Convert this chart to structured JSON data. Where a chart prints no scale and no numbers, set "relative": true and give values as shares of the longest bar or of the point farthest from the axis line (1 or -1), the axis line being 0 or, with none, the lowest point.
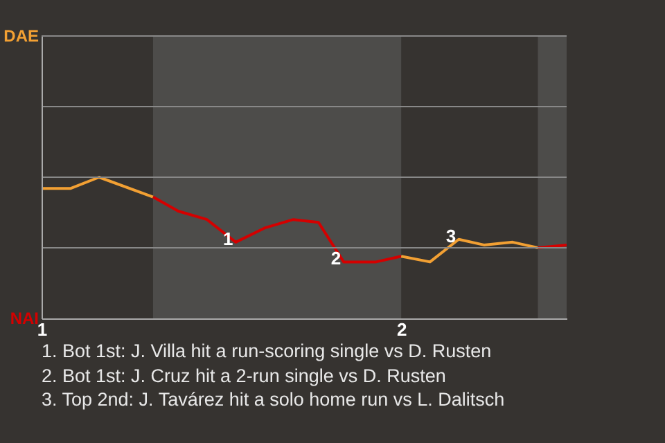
{
  "chart_data": {
    "type": "line",
    "series": [
      {
        "color": "#f2a033",
        "x": [
          1.0,
          1.08,
          1.16,
          1.31
        ],
        "values": [
          0.92,
          0.92,
          1,
          0.86
        ]
      },
      {
        "color": "#d40000",
        "x": [
          1.31,
          1.38,
          1.46,
          1.54,
          1.62,
          1.7,
          1.77,
          1.84,
          1.92,
          1.93,
          2.0
        ],
        "values": [
          0.86,
          0.76,
          0.7,
          0.54,
          0.64,
          0.7,
          0.68,
          0.4,
          0.4,
          0.4,
          0.44
        ]
      },
      {
        "color": "#f2a033",
        "x": [
          2.0,
          2.08,
          2.16,
          2.23,
          2.31,
          2.38
        ],
        "values": [
          0.44,
          0.4,
          0.56,
          0.52,
          0.54,
          0.5
        ]
      },
      {
        "color": "#d40000",
        "x": [
          2.38,
          2.46
        ],
        "values": [
          0.5,
          0.52
        ]
      }
    ],
    "relative": true,
    "xlim": [
      1,
      2.46
    ],
    "xticks": [
      1,
      2
    ],
    "ref_lines": [
      {
        "axis": "y",
        "value": 0.5,
        "color": "#888888"
      },
      {
        "axis": "y",
        "value": 1,
        "color": "#888888"
      },
      {
        "axis": "y",
        "value": 1.5,
        "color": "#888888"
      },
      {
        "axis": "y",
        "value": 2,
        "color": "#888888"
      }
    ],
    "bands": [
      {
        "axis": "x",
        "from": 1.31,
        "to": 2.0,
        "color": "#4d4c4a"
      },
      {
        "axis": "x",
        "from": 2.38,
        "to": 2.46,
        "color": "#4d4c4a"
      }
    ],
    "annotations": [
      "DAE",
      "NAI",
      {
        "text": "1",
        "x": 1.54,
        "y": 0.54
      },
      {
        "text": "2",
        "x": 1.84,
        "y": 0.4
      },
      {
        "text": "3",
        "x": 2.16,
        "y": 0.56
      },
      "1. Bot 1st: J. Villa hit a run-scoring single vs D. Rusten",
      "2. Bot 1st: J. Cruz hit a 2-run single vs D. Rusten",
      "3. Top 2nd: J. Tavárez hit a solo home run vs L. Dalitsch"
    ]
  }
}
